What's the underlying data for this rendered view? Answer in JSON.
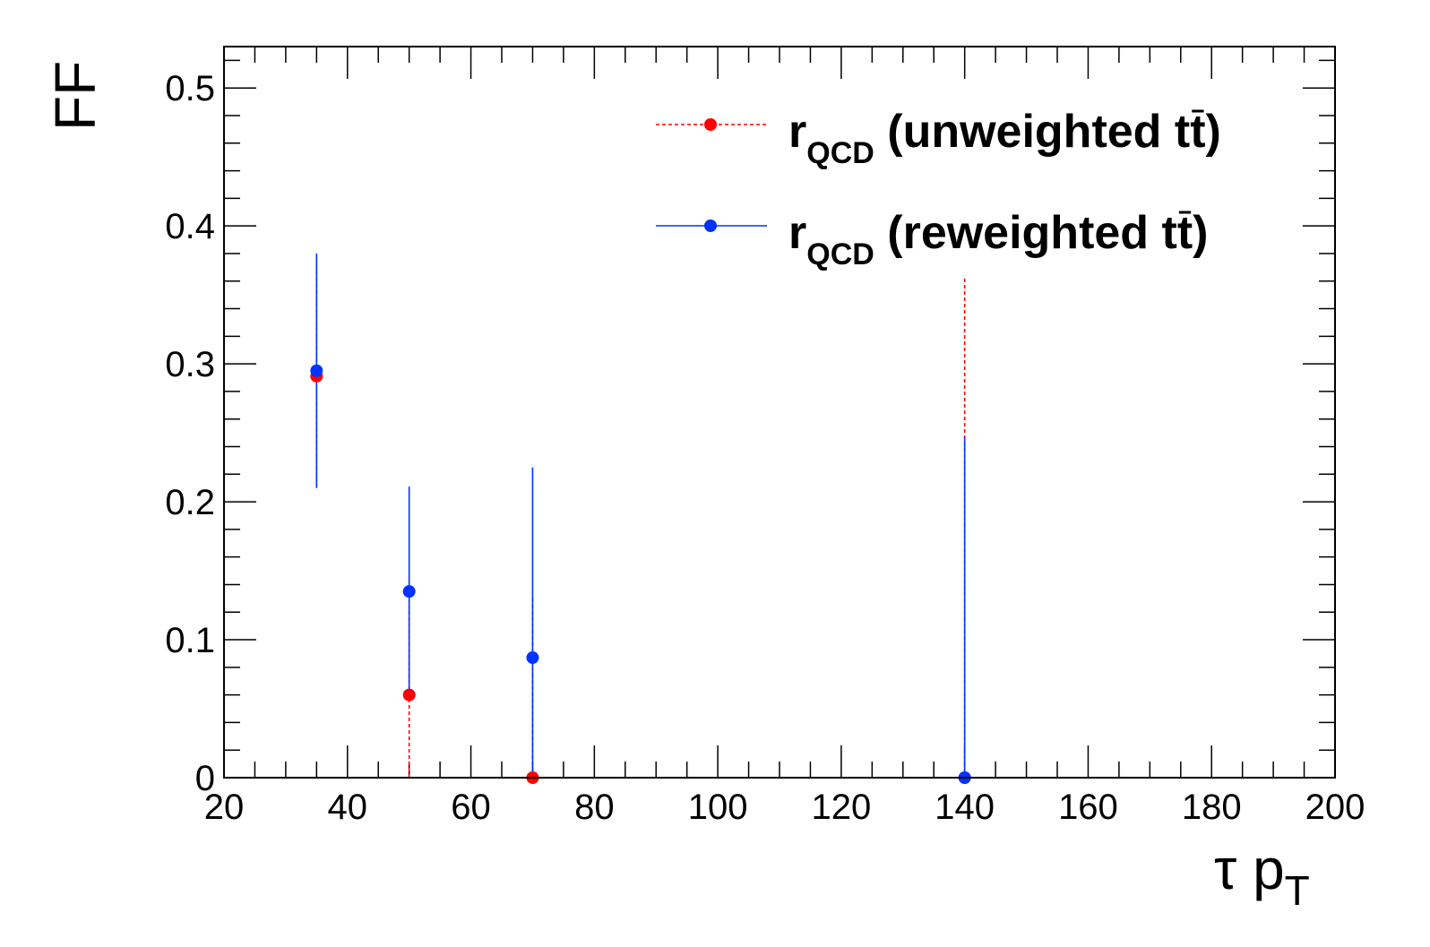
{
  "chart_data": {
    "type": "scatter",
    "xlabel_main": "τ p",
    "xlabel_sub": "T",
    "ylabel": "FF",
    "xlim": [
      20,
      200
    ],
    "ylim": [
      0,
      0.53
    ],
    "x_ticks": [
      "20",
      "40",
      "60",
      "80",
      "100",
      "120",
      "140",
      "160",
      "180",
      "200"
    ],
    "y_ticks": [
      "0",
      "0.1",
      "0.2",
      "0.3",
      "0.4",
      "0.5"
    ],
    "legend_position": "top-right",
    "series": [
      {
        "label_main": "r",
        "label_sub": "QCD",
        "label_rest": " (unweighted t",
        "label_tbar": "t",
        "label_end": ")",
        "color": "#ff0000",
        "line_style": "dashed",
        "points": [
          {
            "x": 35,
            "y": 0.291,
            "ylow": 0.21,
            "yhigh": 0.37
          },
          {
            "x": 50,
            "y": 0.06,
            "ylow": 0.0,
            "yhigh": 0.13
          },
          {
            "x": 70,
            "y": 0.0,
            "ylow": 0.0,
            "yhigh": 0.13
          },
          {
            "x": 140,
            "y": 0.0,
            "ylow": 0.0,
            "yhigh": 0.362
          }
        ]
      },
      {
        "label_main": "r",
        "label_sub": "QCD",
        "label_rest": " (reweighted t",
        "label_tbar": "t",
        "label_end": ")",
        "color": "#0033ff",
        "line_style": "solid",
        "points": [
          {
            "x": 35,
            "y": 0.295,
            "ylow": 0.21,
            "yhigh": 0.38
          },
          {
            "x": 50,
            "y": 0.135,
            "ylow": 0.06,
            "yhigh": 0.211
          },
          {
            "x": 70,
            "y": 0.087,
            "ylow": 0.0,
            "yhigh": 0.225
          },
          {
            "x": 140,
            "y": 0.0,
            "ylow": 0.0,
            "yhigh": 0.247
          }
        ]
      }
    ]
  }
}
